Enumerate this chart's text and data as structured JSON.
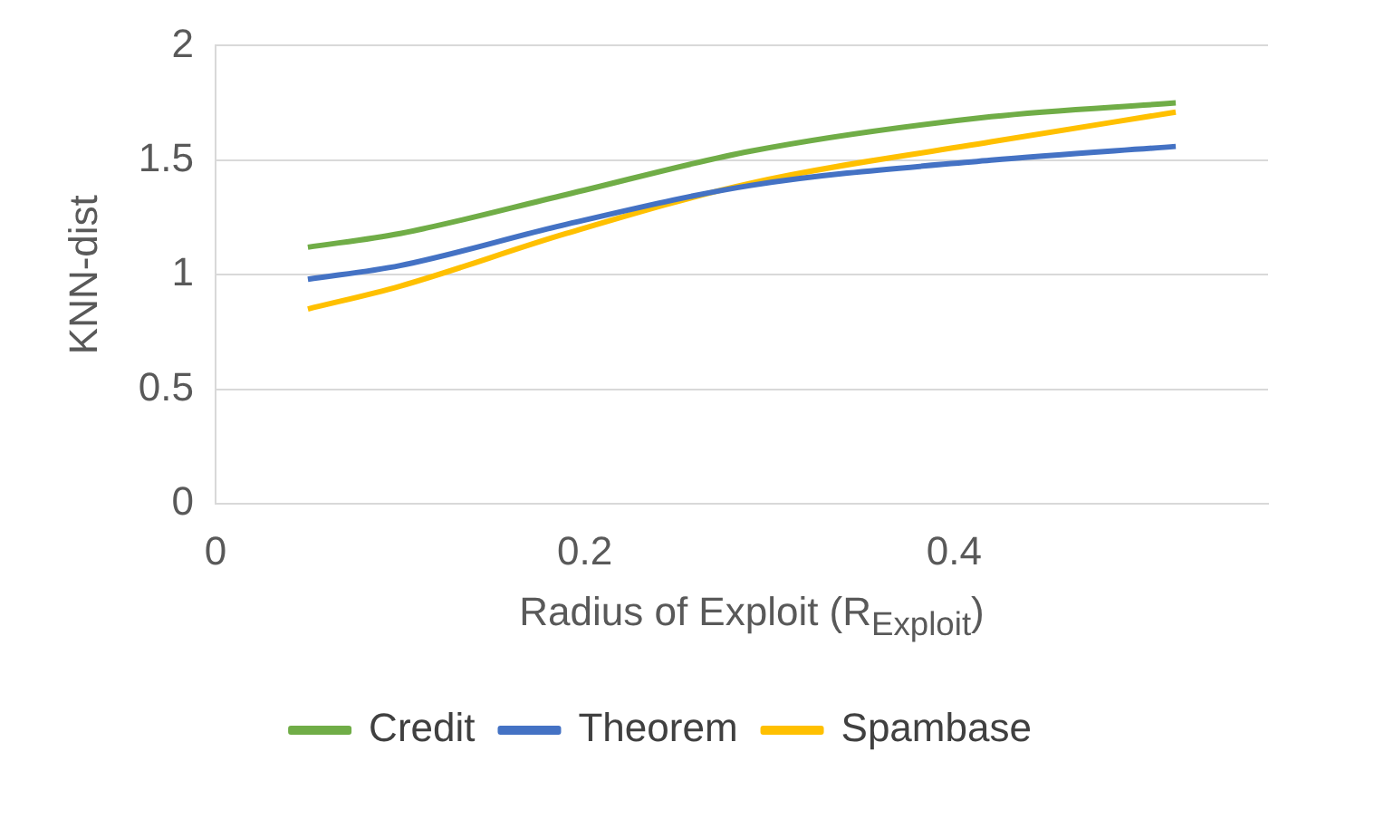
{
  "chart_data": {
    "type": "line",
    "xlabel": "Radius of Exploit (R$_{Exploit}$)",
    "ylabel": "KNN-dist",
    "xlim": [
      0,
      0.57
    ],
    "xticks": [
      0,
      0.2,
      0.4
    ],
    "ylim": [
      0,
      2
    ],
    "yticks": [
      0,
      0.5,
      1,
      1.5,
      2
    ],
    "grid": "y",
    "legend": "bottom",
    "marker": "none",
    "line_style": "solid",
    "series": [
      {
        "name": "Credit",
        "color": "#70ad47",
        "x": [
          0.05,
          0.1,
          0.19,
          0.29,
          0.42,
          0.52
        ],
        "values": [
          1.12,
          1.18,
          1.35,
          1.54,
          1.69,
          1.75
        ]
      },
      {
        "name": "Theorem",
        "color": "#4472c4",
        "x": [
          0.05,
          0.1,
          0.19,
          0.29,
          0.42,
          0.52
        ],
        "values": [
          0.98,
          1.04,
          1.22,
          1.39,
          1.5,
          1.56
        ]
      },
      {
        "name": "Spambase",
        "color": "#ffc000",
        "x": [
          0.05,
          0.1,
          0.19,
          0.29,
          0.42,
          0.52
        ],
        "values": [
          0.85,
          0.95,
          1.18,
          1.4,
          1.58,
          1.71
        ]
      }
    ]
  }
}
